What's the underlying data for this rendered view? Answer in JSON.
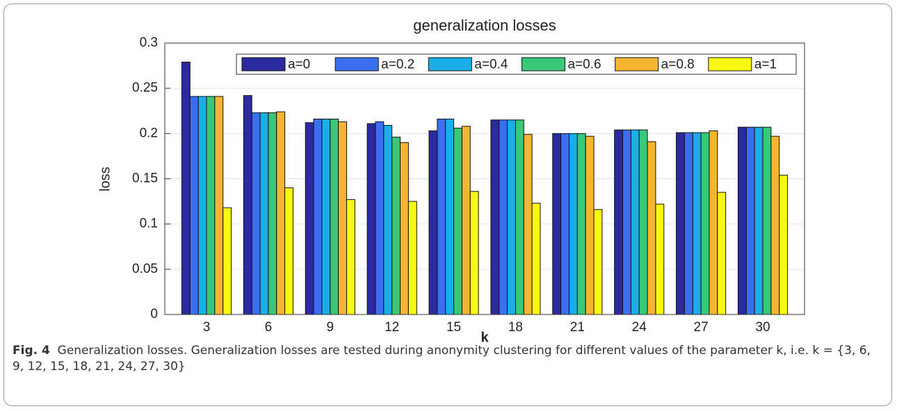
{
  "chart_data": {
    "type": "bar",
    "title": "generalization losses",
    "xlabel": "k",
    "ylabel": "loss",
    "categories": [
      "3",
      "6",
      "9",
      "12",
      "15",
      "18",
      "21",
      "24",
      "27",
      "30"
    ],
    "series": [
      {
        "name": "a=0",
        "color": "#2b2a9e",
        "values": [
          0.279,
          0.242,
          0.212,
          0.211,
          0.203,
          0.215,
          0.2,
          0.204,
          0.201,
          0.207
        ]
      },
      {
        "name": "a=0.2",
        "color": "#3a6ff0",
        "values": [
          0.241,
          0.223,
          0.216,
          0.213,
          0.216,
          0.215,
          0.2,
          0.204,
          0.201,
          0.207
        ]
      },
      {
        "name": "a=0.4",
        "color": "#19aee8",
        "values": [
          0.241,
          0.223,
          0.216,
          0.209,
          0.216,
          0.215,
          0.2,
          0.204,
          0.201,
          0.207
        ]
      },
      {
        "name": "a=0.6",
        "color": "#38c878",
        "values": [
          0.241,
          0.223,
          0.216,
          0.196,
          0.206,
          0.215,
          0.2,
          0.204,
          0.201,
          0.207
        ]
      },
      {
        "name": "a=0.8",
        "color": "#f5b530",
        "values": [
          0.241,
          0.224,
          0.213,
          0.19,
          0.208,
          0.199,
          0.197,
          0.191,
          0.203,
          0.197
        ]
      },
      {
        "name": "a=1",
        "color": "#f8f812",
        "values": [
          0.118,
          0.14,
          0.127,
          0.125,
          0.136,
          0.123,
          0.116,
          0.122,
          0.135,
          0.154
        ]
      }
    ],
    "ylim": [
      0,
      0.3
    ],
    "yticks": [
      0,
      0.05,
      0.1,
      0.15,
      0.2,
      0.25,
      0.3
    ],
    "grid": true,
    "legend": "top"
  },
  "caption": {
    "label": "Fig. 4",
    "text": "Generalization losses. Generalization losses are tested during anonymity clustering for different values of the parameter k, i.e. k = {3, 6, 9, 12, 15, 18, 21, 24, 27, 30}"
  }
}
